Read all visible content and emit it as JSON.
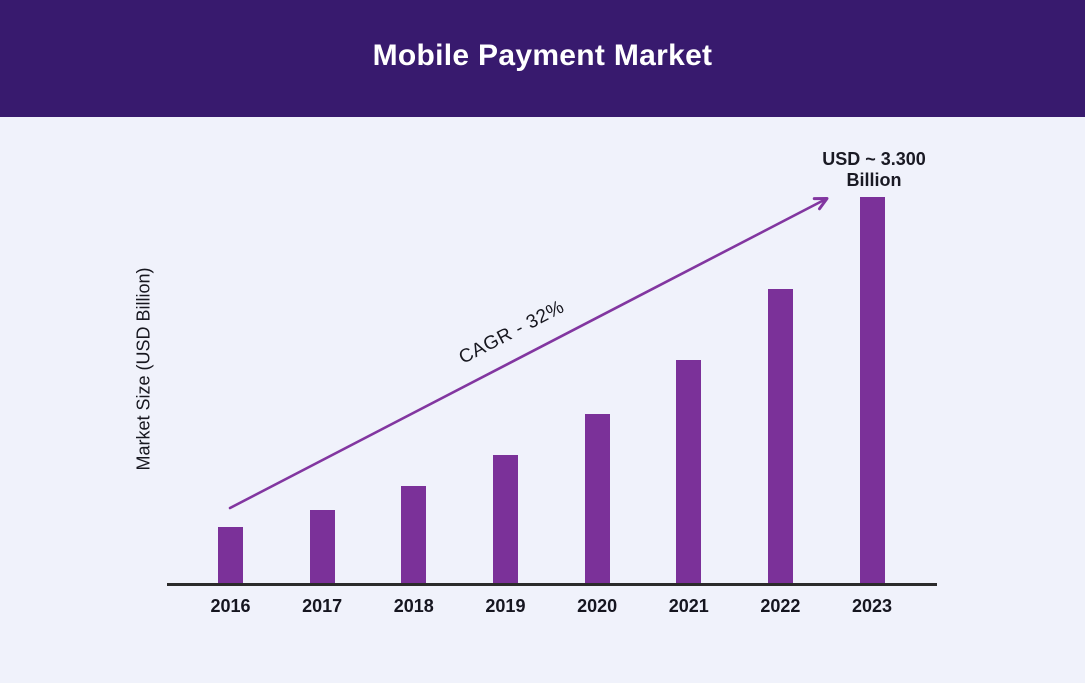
{
  "header": {
    "title": "Mobile Payment Market"
  },
  "chart_data": {
    "type": "bar",
    "title": "Mobile Payment Market",
    "categories": [
      "2016",
      "2017",
      "2018",
      "2019",
      "2020",
      "2021",
      "2022",
      "2023"
    ],
    "values": [
      475,
      627,
      828,
      1093,
      1443,
      1905,
      2515,
      3300
    ],
    "xlabel": "",
    "ylabel": "Market Size (USD Billion)",
    "ylim": [
      0,
      3400
    ],
    "grid": false,
    "legend": false,
    "bar_color": "#7B3199",
    "annotations": {
      "cagr": "CAGR - 32%",
      "usd_line1": "USD ~ 3.300",
      "usd_line2": "Billion"
    }
  },
  "colors": {
    "header_bg": "#381A6E",
    "page_bg": "#F0F2FB",
    "bar": "#7B3199",
    "arrow": "#8236A0",
    "axis": "#2B2B2B",
    "text": "#17171F",
    "title_text": "#FFFFFF"
  }
}
